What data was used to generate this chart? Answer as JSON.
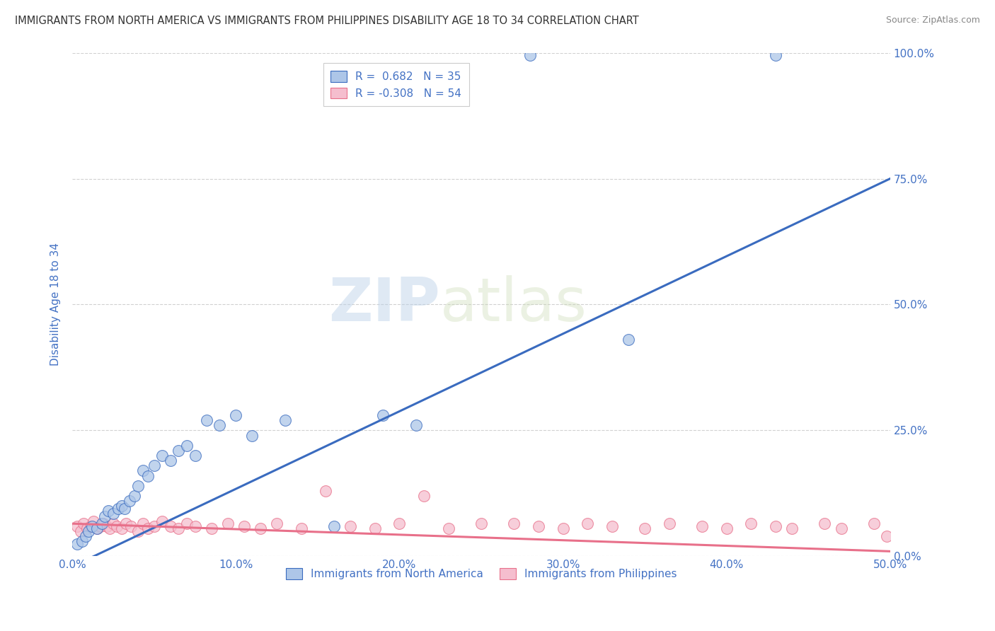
{
  "title": "IMMIGRANTS FROM NORTH AMERICA VS IMMIGRANTS FROM PHILIPPINES DISABILITY AGE 18 TO 34 CORRELATION CHART",
  "source": "Source: ZipAtlas.com",
  "ylabel": "Disability Age 18 to 34",
  "xlim": [
    0.0,
    0.5
  ],
  "ylim": [
    0.0,
    1.0
  ],
  "blue_R": 0.682,
  "blue_N": 35,
  "pink_R": -0.308,
  "pink_N": 54,
  "blue_color": "#adc6e8",
  "pink_color": "#f5bece",
  "blue_line_color": "#3a6bbf",
  "pink_line_color": "#e8708a",
  "blue_line_x0": 0.0,
  "blue_line_y0": -0.02,
  "blue_line_x1": 0.5,
  "blue_line_y1": 0.75,
  "pink_line_x0": 0.0,
  "pink_line_y0": 0.065,
  "pink_line_x1": 0.5,
  "pink_line_y1": 0.01,
  "blue_scatter": [
    [
      0.003,
      0.025
    ],
    [
      0.006,
      0.03
    ],
    [
      0.008,
      0.04
    ],
    [
      0.01,
      0.05
    ],
    [
      0.012,
      0.06
    ],
    [
      0.015,
      0.055
    ],
    [
      0.018,
      0.065
    ],
    [
      0.02,
      0.08
    ],
    [
      0.022,
      0.09
    ],
    [
      0.025,
      0.085
    ],
    [
      0.028,
      0.095
    ],
    [
      0.03,
      0.1
    ],
    [
      0.032,
      0.095
    ],
    [
      0.035,
      0.11
    ],
    [
      0.038,
      0.12
    ],
    [
      0.04,
      0.14
    ],
    [
      0.043,
      0.17
    ],
    [
      0.046,
      0.16
    ],
    [
      0.05,
      0.18
    ],
    [
      0.055,
      0.2
    ],
    [
      0.06,
      0.19
    ],
    [
      0.065,
      0.21
    ],
    [
      0.07,
      0.22
    ],
    [
      0.075,
      0.2
    ],
    [
      0.082,
      0.27
    ],
    [
      0.09,
      0.26
    ],
    [
      0.1,
      0.28
    ],
    [
      0.11,
      0.24
    ],
    [
      0.13,
      0.27
    ],
    [
      0.16,
      0.06
    ],
    [
      0.19,
      0.28
    ],
    [
      0.21,
      0.26
    ],
    [
      0.28,
      0.995
    ],
    [
      0.43,
      0.995
    ],
    [
      0.34,
      0.43
    ]
  ],
  "pink_scatter": [
    [
      0.003,
      0.06
    ],
    [
      0.005,
      0.05
    ],
    [
      0.007,
      0.065
    ],
    [
      0.009,
      0.055
    ],
    [
      0.011,
      0.06
    ],
    [
      0.013,
      0.07
    ],
    [
      0.015,
      0.055
    ],
    [
      0.017,
      0.06
    ],
    [
      0.019,
      0.065
    ],
    [
      0.021,
      0.06
    ],
    [
      0.023,
      0.055
    ],
    [
      0.025,
      0.065
    ],
    [
      0.027,
      0.06
    ],
    [
      0.03,
      0.055
    ],
    [
      0.033,
      0.065
    ],
    [
      0.036,
      0.06
    ],
    [
      0.04,
      0.05
    ],
    [
      0.043,
      0.065
    ],
    [
      0.046,
      0.055
    ],
    [
      0.05,
      0.06
    ],
    [
      0.055,
      0.07
    ],
    [
      0.06,
      0.06
    ],
    [
      0.065,
      0.055
    ],
    [
      0.07,
      0.065
    ],
    [
      0.075,
      0.06
    ],
    [
      0.085,
      0.055
    ],
    [
      0.095,
      0.065
    ],
    [
      0.105,
      0.06
    ],
    [
      0.115,
      0.055
    ],
    [
      0.125,
      0.065
    ],
    [
      0.14,
      0.055
    ],
    [
      0.155,
      0.13
    ],
    [
      0.17,
      0.06
    ],
    [
      0.185,
      0.055
    ],
    [
      0.2,
      0.065
    ],
    [
      0.215,
      0.12
    ],
    [
      0.23,
      0.055
    ],
    [
      0.25,
      0.065
    ],
    [
      0.27,
      0.065
    ],
    [
      0.285,
      0.06
    ],
    [
      0.3,
      0.055
    ],
    [
      0.315,
      0.065
    ],
    [
      0.33,
      0.06
    ],
    [
      0.35,
      0.055
    ],
    [
      0.365,
      0.065
    ],
    [
      0.385,
      0.06
    ],
    [
      0.4,
      0.055
    ],
    [
      0.415,
      0.065
    ],
    [
      0.43,
      0.06
    ],
    [
      0.44,
      0.055
    ],
    [
      0.46,
      0.065
    ],
    [
      0.47,
      0.055
    ],
    [
      0.49,
      0.065
    ],
    [
      0.498,
      0.04
    ]
  ],
  "watermark_zip": "ZIP",
  "watermark_atlas": "atlas",
  "grid_color": "#cccccc",
  "bg_color": "#ffffff",
  "title_color": "#333333",
  "axis_color": "#4472c4",
  "legend_label_blue": "Immigrants from North America",
  "legend_label_pink": "Immigrants from Philippines",
  "y_tick_vals": [
    0.0,
    0.25,
    0.5,
    0.75,
    1.0
  ],
  "x_tick_vals": [
    0.0,
    0.1,
    0.2,
    0.3,
    0.4,
    0.5
  ]
}
